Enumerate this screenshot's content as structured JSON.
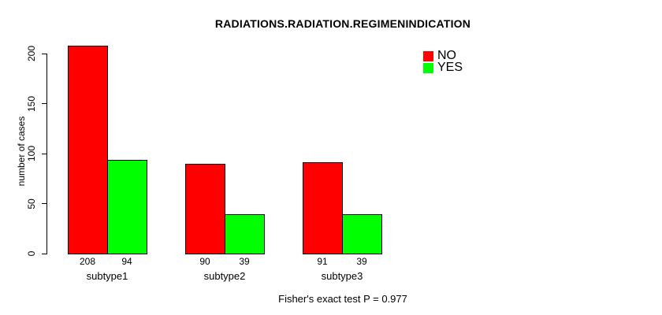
{
  "chart_data": {
    "type": "bar",
    "title": "RADIATIONS.RADIATION.REGIMENINDICATION",
    "xlabel": "",
    "ylabel": "number of cases",
    "categories": [
      "subtype1",
      "subtype2",
      "subtype3"
    ],
    "series": [
      {
        "name": "NO",
        "color": "#FF0000",
        "values": [
          208,
          90,
          91
        ]
      },
      {
        "name": "YES",
        "color": "#00FF00",
        "values": [
          94,
          39,
          39
        ]
      }
    ],
    "bar_value_labels": [
      [
        "208",
        "94"
      ],
      [
        "90",
        "39"
      ],
      [
        "91",
        "39"
      ]
    ],
    "yticks": [
      0,
      50,
      100,
      150,
      200
    ],
    "ylim": [
      0,
      200
    ],
    "grid": false,
    "legend_position": "top-right",
    "annotation": "Fisher's exact test P = 0.977"
  }
}
